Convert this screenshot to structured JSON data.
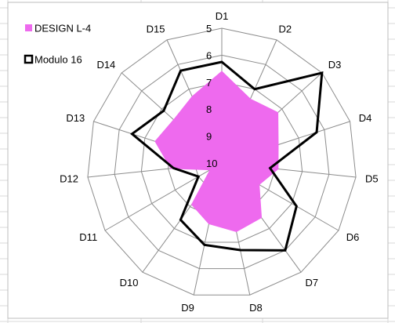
{
  "chart_data": {
    "type": "radar",
    "categories": [
      "D1",
      "D2",
      "D3",
      "D4",
      "D5",
      "D6",
      "D7",
      "D8",
      "D9",
      "D10",
      "D11",
      "D12",
      "D13",
      "D14",
      "D15"
    ],
    "axis": {
      "min": 5,
      "max": 10,
      "reversed": true,
      "ticks": [
        "5",
        "6",
        "7",
        "8",
        "9",
        "10"
      ]
    },
    "grid": true,
    "legend": "top-left",
    "series": [
      {
        "name": "DESIGN L-4",
        "style": "filled",
        "color": "#ee6aee",
        "values": [
          6.6,
          7.4,
          7.2,
          7.8,
          7.9,
          8.4,
          7.5,
          7.4,
          7.7,
          8.1,
          9.5,
          8.1,
          7.4,
          7.6,
          7.3
        ]
      },
      {
        "name": "Modulo 16",
        "style": "line",
        "color": "#000000",
        "values": [
          6.25,
          7.0,
          5.0,
          6.3,
          8.2,
          6.8,
          6.0,
          6.7,
          6.9,
          7.4,
          9.0,
          8.2,
          6.5,
          7.1,
          6.25
        ]
      }
    ]
  }
}
